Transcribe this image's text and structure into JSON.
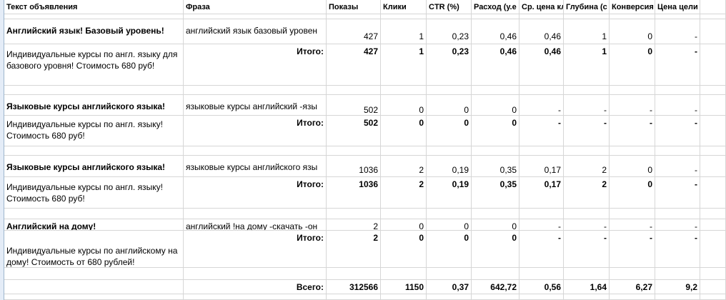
{
  "header": [
    "Текст объявления",
    "Фраза",
    "Показы",
    "Клики",
    "CTR (%)",
    "Расход (у.е",
    "Ср. цена кл",
    "Глубина (с",
    "Конверсия",
    "Цена цели (у.е.)"
  ],
  "groups": [
    {
      "ad_title": "Английский язык! Базовый уровень!",
      "phrase": "английский язык базовый уровен",
      "stats": [
        "427",
        "1",
        "0,23",
        "0,46",
        "0,46",
        "1",
        "0",
        "-"
      ],
      "ad_text": "Индивидуальные курсы по англ. языку для базового уровня! Стоимость 680 руб!",
      "total_label": "Итого:",
      "totals": [
        "427",
        "1",
        "0,23",
        "0,46",
        "0,46",
        "1",
        "0",
        "-"
      ]
    },
    {
      "ad_title": "Языковые курсы английского языка!",
      "phrase": "языковые курсы английский -язы",
      "stats": [
        "502",
        "0",
        "0",
        "0",
        "-",
        "-",
        "-",
        "-"
      ],
      "ad_text": "Индивидуальные курсы по англ. языку! Стоимость 680 руб!",
      "total_label": "Итого:",
      "totals": [
        "502",
        "0",
        "0",
        "0",
        "-",
        "-",
        "-",
        "-"
      ]
    },
    {
      "ad_title": "Языковые курсы английского языка!",
      "phrase": "языковые курсы английского язы",
      "stats": [
        "1036",
        "2",
        "0,19",
        "0,35",
        "0,17",
        "2",
        "0",
        "-"
      ],
      "ad_text": "Индивидуальные курсы по англ. языку! Стоимость 680 руб!",
      "total_label": "Итого:",
      "totals": [
        "1036",
        "2",
        "0,19",
        "0,35",
        "0,17",
        "2",
        "0",
        "-"
      ]
    },
    {
      "ad_title": "Английский на дому!",
      "phrase": "английский !на дому -скачать -он",
      "stats": [
        "2",
        "0",
        "0",
        "0",
        "-",
        "-",
        "-",
        "-"
      ],
      "ad_text": "Индивидуальные курсы по английскому на дому! Стоимость от 680 рублей!",
      "total_label": "Итого:",
      "totals": [
        "2",
        "0",
        "0",
        "0",
        "-",
        "-",
        "-",
        "-"
      ]
    }
  ],
  "grand_total": {
    "label": "Всего:",
    "values": [
      "312566",
      "1150",
      "0,37",
      "642,72",
      "0,56",
      "1,64",
      "6,27",
      "9,2"
    ]
  }
}
